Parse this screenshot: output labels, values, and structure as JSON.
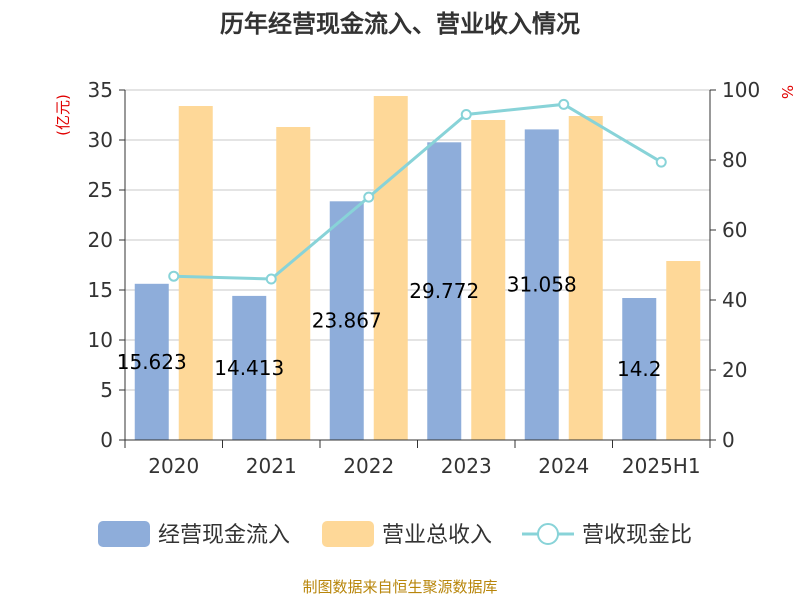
{
  "chart_data": {
    "type": "bar",
    "title": "历年经营现金流入、营业收入情况",
    "categories": [
      "2020",
      "2021",
      "2022",
      "2023",
      "2024",
      "2025H1"
    ],
    "series": [
      {
        "name": "经营现金流入",
        "kind": "bar",
        "axis": "left",
        "color": "#8eadda",
        "values": [
          15.62,
          14.41,
          23.87,
          29.77,
          31.06,
          14.2
        ],
        "labels": [
          "15.623",
          "14.413",
          "23.867",
          "29.772",
          "31.058",
          "14.2"
        ]
      },
      {
        "name": "营业总收入",
        "kind": "bar",
        "axis": "left",
        "color": "#fed898",
        "values": [
          33.4,
          31.3,
          34.4,
          32.0,
          32.4,
          17.9
        ]
      },
      {
        "name": "营收现金比",
        "kind": "line",
        "axis": "right",
        "color": "#88d3d8",
        "values": [
          46.8,
          46.0,
          69.4,
          93.0,
          95.9,
          79.4
        ]
      }
    ],
    "yleft": {
      "label": "(亿元)",
      "min": 0,
      "max": 35,
      "ticks": [
        "0",
        "5",
        "10",
        "15",
        "20",
        "25",
        "30",
        "35"
      ]
    },
    "yright": {
      "label": "%",
      "min": 0,
      "max": 100,
      "ticks": [
        "0",
        "20",
        "40",
        "60",
        "80",
        "100"
      ]
    },
    "grid": true,
    "legend": "bottom",
    "source": "制图数据来自恒生聚源数据库"
  }
}
